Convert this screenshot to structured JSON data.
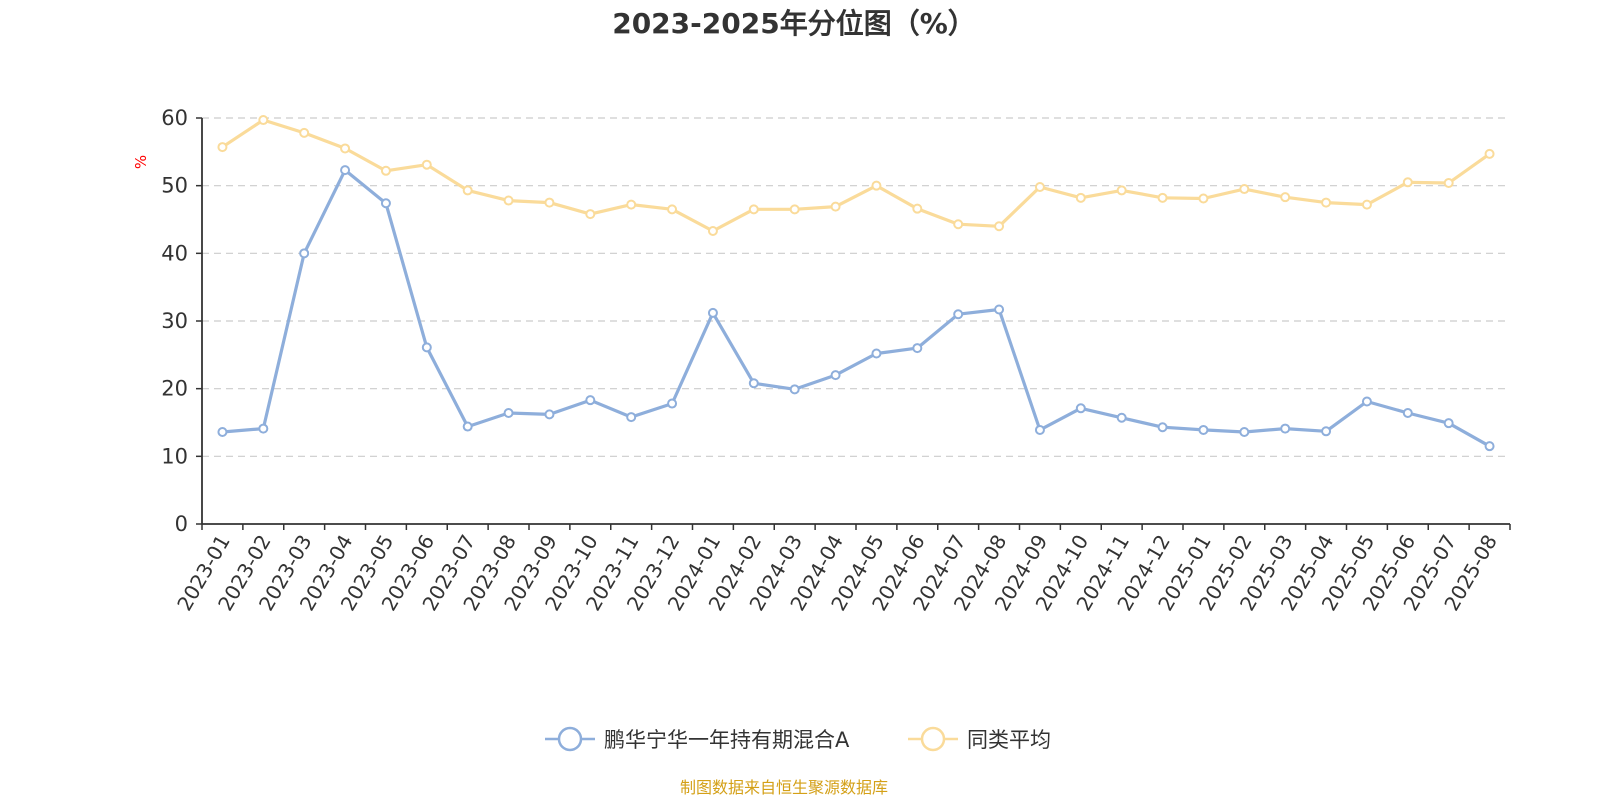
{
  "chart_data": {
    "type": "line",
    "title": "2023-2025年分位图（%）",
    "ylabel": "%",
    "ylim": [
      0,
      60
    ],
    "yticks": [
      0,
      10,
      20,
      30,
      40,
      50,
      60
    ],
    "grid": true,
    "legend_position": "bottom-center",
    "categories": [
      "2023-01",
      "2023-02",
      "2023-03",
      "2023-04",
      "2023-05",
      "2023-06",
      "2023-07",
      "2023-08",
      "2023-09",
      "2023-10",
      "2023-11",
      "2023-12",
      "2024-01",
      "2024-02",
      "2024-03",
      "2024-04",
      "2024-05",
      "2024-06",
      "2024-07",
      "2024-08",
      "2024-09",
      "2024-10",
      "2024-11",
      "2024-12",
      "2025-01",
      "2025-02",
      "2025-03",
      "2025-04",
      "2025-05",
      "2025-06",
      "2025-07",
      "2025-08"
    ],
    "series": [
      {
        "name": "鹏华宁华一年持有期混合A",
        "color": "#8eaedb",
        "values": [
          13.6,
          14.1,
          40.0,
          52.3,
          47.4,
          26.1,
          14.4,
          16.4,
          16.2,
          18.3,
          15.8,
          17.8,
          31.2,
          20.8,
          19.9,
          22.0,
          25.2,
          26.0,
          31.0,
          31.7,
          13.9,
          17.1,
          15.7,
          14.3,
          13.9,
          13.6,
          14.1,
          13.7,
          18.1,
          16.4,
          14.9,
          11.5
        ]
      },
      {
        "name": "同类平均",
        "color": "#fadb9a",
        "values": [
          55.7,
          59.7,
          57.8,
          55.5,
          52.2,
          53.1,
          49.3,
          47.8,
          47.5,
          45.8,
          47.2,
          46.5,
          43.3,
          46.5,
          46.5,
          46.9,
          50.0,
          46.6,
          44.3,
          44.0,
          49.8,
          48.2,
          49.3,
          48.2,
          48.1,
          49.5,
          48.3,
          47.5,
          47.2,
          50.5,
          50.4,
          54.7
        ]
      }
    ]
  },
  "colors": {
    "axis": "#333333",
    "grid": "#cccccc",
    "unit_label": "#ff0000",
    "source_text": "#d4a017"
  },
  "source_note": "制图数据来自恒生聚源数据库"
}
